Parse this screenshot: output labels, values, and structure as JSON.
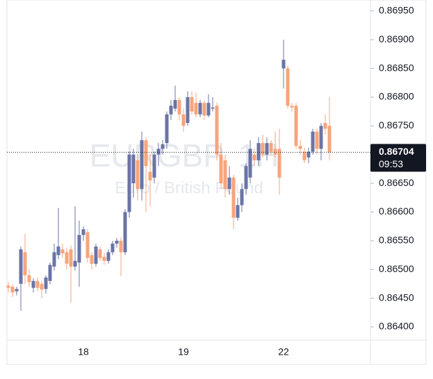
{
  "chart_data": {
    "type": "candlestick",
    "watermark_title": "EURGBP, 1H",
    "watermark_subtitle": "Euro / British Pound",
    "categories": [
      null,
      null,
      null,
      null,
      null,
      null,
      null,
      null,
      null,
      null,
      null,
      null,
      null,
      null,
      null,
      null,
      null,
      null,
      "18",
      null,
      null,
      null,
      null,
      null,
      null,
      null,
      null,
      null,
      null,
      null,
      null,
      null,
      null,
      null,
      null,
      null,
      null,
      null,
      null,
      null,
      null,
      null,
      "19",
      null,
      null,
      null,
      null,
      null,
      null,
      null,
      null,
      null,
      null,
      null,
      null,
      null,
      null,
      null,
      null,
      null,
      null,
      null,
      null,
      null,
      null,
      null,
      "22",
      null,
      null,
      null,
      null,
      null,
      null,
      null,
      null,
      null,
      null,
      null
    ],
    "open": [
      0.86472,
      0.8647,
      0.86462,
      0.86475,
      0.8653,
      0.8649,
      0.86468,
      0.8648,
      0.86475,
      0.86466,
      0.8648,
      0.86505,
      0.86525,
      0.86535,
      0.8653,
      0.86535,
      0.86505,
      0.86512,
      0.8656,
      0.86565,
      0.86525,
      0.8651,
      0.86535,
      0.86522,
      0.86515,
      0.8653,
      0.86545,
      0.8655,
      0.8653,
      0.866,
      0.8665,
      0.8669,
      0.8664,
      0.86725,
      0.8667,
      0.8666,
      0.867,
      0.8671,
      0.8672,
      0.8677,
      0.8678,
      0.86795,
      0.8677,
      0.86755,
      0.868,
      0.8679,
      0.8677,
      0.8679,
      0.86768,
      0.8678,
      0.86785,
      0.867,
      0.8669,
      0.8664,
      0.8666,
      0.8659,
      0.86612,
      0.8664,
      0.8666,
      0.867,
      0.8669,
      0.8672,
      0.867,
      0.8672,
      0.8671,
      0.8671,
      0.8685,
      0.8685,
      0.86785,
      0.86785,
      0.86715,
      0.86705,
      0.86695,
      0.86705,
      0.8674,
      0.8671,
      0.86755,
      0.8675
    ],
    "high": [
      0.86478,
      0.86474,
      0.8647,
      0.8654,
      0.86562,
      0.865,
      0.86485,
      0.86486,
      0.8648,
      0.8649,
      0.86512,
      0.86545,
      0.86607,
      0.86545,
      0.86538,
      0.86542,
      0.8661,
      0.86585,
      0.86575,
      0.8657,
      0.8653,
      0.86545,
      0.8654,
      0.86528,
      0.86535,
      0.8655,
      0.86555,
      0.86556,
      0.86605,
      0.86705,
      0.8671,
      0.867,
      0.8674,
      0.8673,
      0.867,
      0.86705,
      0.8672,
      0.86725,
      0.86775,
      0.86795,
      0.8682,
      0.868,
      0.8678,
      0.8681,
      0.8681,
      0.86808,
      0.86795,
      0.86795,
      0.86805,
      0.868,
      0.8679,
      0.8672,
      0.867,
      0.8668,
      0.86665,
      0.86625,
      0.8665,
      0.86685,
      0.86725,
      0.8671,
      0.8673,
      0.86735,
      0.8673,
      0.86725,
      0.8674,
      0.86745,
      0.869,
      0.86855,
      0.8679,
      0.8679,
      0.86725,
      0.86712,
      0.86712,
      0.86745,
      0.86745,
      0.86755,
      0.8677,
      0.868
    ],
    "low": [
      0.8646,
      0.86452,
      0.86455,
      0.86428,
      0.86475,
      0.8647,
      0.8646,
      0.86462,
      0.8645,
      0.86458,
      0.86474,
      0.86498,
      0.86518,
      0.8652,
      0.865,
      0.86442,
      0.86498,
      0.8647,
      0.8655,
      0.86512,
      0.865,
      0.86505,
      0.86515,
      0.86508,
      0.8651,
      0.86525,
      0.86538,
      0.86488,
      0.86525,
      0.8659,
      0.86625,
      0.8662,
      0.8662,
      0.866,
      0.8661,
      0.8665,
      0.8668,
      0.867,
      0.8671,
      0.8676,
      0.86775,
      0.8676,
      0.8674,
      0.8675,
      0.8677,
      0.86765,
      0.86765,
      0.8676,
      0.86765,
      0.86775,
      0.8669,
      0.8664,
      0.86625,
      0.8663,
      0.8657,
      0.86585,
      0.866,
      0.8663,
      0.8665,
      0.8668,
      0.8668,
      0.86695,
      0.8669,
      0.867,
      0.86695,
      0.8663,
      0.86815,
      0.8678,
      0.86775,
      0.8671,
      0.867,
      0.86685,
      0.86685,
      0.867,
      0.867,
      0.8669,
      0.86735,
      0.8669
    ],
    "close": [
      0.86468,
      0.8646,
      0.86466,
      0.86535,
      0.8649,
      0.86478,
      0.8648,
      0.86468,
      0.86465,
      0.86486,
      0.86508,
      0.8653,
      0.8654,
      0.86528,
      0.8651,
      0.86505,
      0.86515,
      0.8656,
      0.8657,
      0.8652,
      0.8651,
      0.8654,
      0.8652,
      0.86515,
      0.8653,
      0.86545,
      0.8655,
      0.8653,
      0.866,
      0.867,
      0.867,
      0.8664,
      0.86725,
      0.8668,
      0.86655,
      0.867,
      0.8671,
      0.86718,
      0.8677,
      0.86785,
      0.86795,
      0.8677,
      0.8675,
      0.868,
      0.86775,
      0.8677,
      0.8679,
      0.86768,
      0.8679,
      0.86782,
      0.867,
      0.8665,
      0.8664,
      0.8666,
      0.8659,
      0.86612,
      0.8664,
      0.8668,
      0.8671,
      0.8669,
      0.8672,
      0.867,
      0.8672,
      0.86705,
      0.867,
      0.8666,
      0.86865,
      0.86785,
      0.86782,
      0.86715,
      0.8671,
      0.8669,
      0.86705,
      0.8674,
      0.8671,
      0.8675,
      0.86745,
      0.86704
    ],
    "up_color": "#6a74a6",
    "down_color": "#f7a47c",
    "last_price": 0.86704,
    "countdown": "09:53",
    "ylim": [
      0.86377,
      0.86957
    ],
    "yticks": [
      {
        "value": 0.864,
        "label": "0.86400"
      },
      {
        "value": 0.8645,
        "label": "0.86450"
      },
      {
        "value": 0.865,
        "label": "0.86500"
      },
      {
        "value": 0.8655,
        "label": "0.86550"
      },
      {
        "value": 0.866,
        "label": "0.86600"
      },
      {
        "value": 0.8665,
        "label": "0.86650"
      },
      {
        "value": 0.867,
        "label": "0.86700"
      },
      {
        "value": 0.8675,
        "label": "0.86750"
      },
      {
        "value": 0.868,
        "label": "0.86800"
      },
      {
        "value": 0.8685,
        "label": "0.86850"
      },
      {
        "value": 0.869,
        "label": "0.86900"
      },
      {
        "value": 0.8695,
        "label": "0.86950"
      }
    ],
    "grid": false
  }
}
